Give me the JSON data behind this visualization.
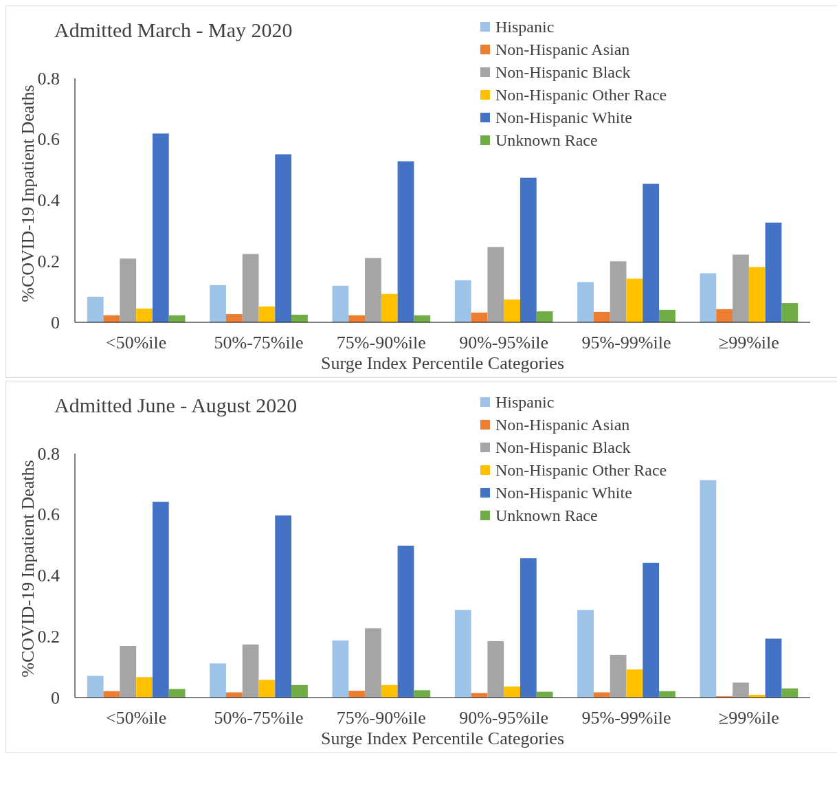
{
  "chart_data": [
    {
      "type": "bar",
      "title": "Admitted March - May 2020",
      "xlabel": "Surge Index Percentile Categories",
      "ylabel": "%COVID-19 Inpatient Deaths",
      "categories": [
        "<50%ile",
        "50%-75%ile",
        "75%-90%ile",
        "90%-95%ile",
        "95%-99%ile",
        "≥99%ile"
      ],
      "series": [
        {
          "name": "Hispanic",
          "color": "#9dc3e6",
          "values": [
            0.084,
            0.122,
            0.12,
            0.138,
            0.132,
            0.161
          ]
        },
        {
          "name": "Non-Hispanic Asian",
          "color": "#ed7d31",
          "values": [
            0.023,
            0.027,
            0.023,
            0.032,
            0.034,
            0.043
          ]
        },
        {
          "name": "Non-Hispanic Black",
          "color": "#a5a5a5",
          "values": [
            0.209,
            0.224,
            0.211,
            0.247,
            0.2,
            0.222
          ]
        },
        {
          "name": "Non-Hispanic Other Race",
          "color": "#ffc000",
          "values": [
            0.045,
            0.052,
            0.093,
            0.075,
            0.143,
            0.181
          ]
        },
        {
          "name": "Non-Hispanic White",
          "color": "#4472c4",
          "values": [
            0.619,
            0.551,
            0.528,
            0.474,
            0.454,
            0.327
          ]
        },
        {
          "name": "Unknown Race",
          "color": "#70ad47",
          "values": [
            0.023,
            0.025,
            0.023,
            0.036,
            0.041,
            0.063
          ]
        }
      ],
      "ylim": [
        0,
        0.8
      ],
      "yticks": [
        0,
        0.2,
        0.4,
        0.6,
        0.8
      ],
      "grid": false,
      "legend": "top right"
    },
    {
      "type": "bar",
      "title": "Admitted June - August 2020",
      "xlabel": "Surge Index Percentile Categories",
      "ylabel": "%COVID-19 Inpatient Deaths",
      "categories": [
        "<50%ile",
        "50%-75%ile",
        "75%-90%ile",
        "90%-95%ile",
        "95%-99%ile",
        "≥99%ile"
      ],
      "series": [
        {
          "name": "Hispanic",
          "color": "#9dc3e6",
          "values": [
            0.071,
            0.112,
            0.187,
            0.287,
            0.287,
            0.713
          ]
        },
        {
          "name": "Non-Hispanic Asian",
          "color": "#ed7d31",
          "values": [
            0.021,
            0.017,
            0.022,
            0.015,
            0.017,
            0.004
          ]
        },
        {
          "name": "Non-Hispanic Black",
          "color": "#a5a5a5",
          "values": [
            0.169,
            0.174,
            0.227,
            0.185,
            0.14,
            0.049
          ]
        },
        {
          "name": "Non-Hispanic Other Race",
          "color": "#ffc000",
          "values": [
            0.067,
            0.058,
            0.041,
            0.036,
            0.092,
            0.009
          ]
        },
        {
          "name": "Non-Hispanic White",
          "color": "#4472c4",
          "values": [
            0.642,
            0.597,
            0.498,
            0.457,
            0.442,
            0.193
          ]
        },
        {
          "name": "Unknown Race",
          "color": "#70ad47",
          "values": [
            0.028,
            0.041,
            0.024,
            0.019,
            0.021,
            0.03
          ]
        }
      ],
      "ylim": [
        0,
        0.8
      ],
      "yticks": [
        0,
        0.2,
        0.4,
        0.6,
        0.8
      ],
      "grid": false,
      "legend": "top right"
    }
  ]
}
